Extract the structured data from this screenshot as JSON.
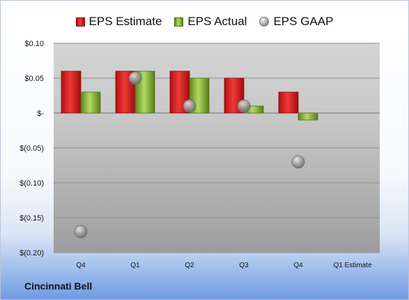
{
  "legend": {
    "estimate": "EPS Estimate",
    "actual": "EPS Actual",
    "gaap": "EPS GAAP"
  },
  "company_label": "Cincinnati Bell",
  "colors": {
    "estimate": "#d9262a",
    "actual": "#8db83f",
    "gaap": "#a8a8a8"
  },
  "chart_data": {
    "type": "bar",
    "categories": [
      "Q4",
      "Q1",
      "Q2",
      "Q3",
      "Q4",
      "Q1 Estimate"
    ],
    "series": [
      {
        "name": "EPS Estimate",
        "values": [
          0.06,
          0.06,
          0.06,
          0.05,
          0.03,
          null
        ]
      },
      {
        "name": "EPS Actual",
        "values": [
          0.03,
          0.06,
          0.05,
          0.01,
          -0.01,
          null
        ]
      },
      {
        "name": "EPS GAAP",
        "values": [
          -0.17,
          0.05,
          0.01,
          0.01,
          -0.07,
          null
        ],
        "marker": "circle"
      }
    ],
    "yticks": [
      0.1,
      0.05,
      0,
      -0.05,
      -0.1,
      -0.15,
      -0.2
    ],
    "ytick_labels": [
      "$0.10",
      "$0.05",
      "$-",
      "$(0.05)",
      "$(0.10)",
      "$(0.15)",
      "$(0.20)"
    ],
    "ylim": [
      -0.2,
      0.1
    ],
    "grid": true,
    "legend_position": "top"
  }
}
